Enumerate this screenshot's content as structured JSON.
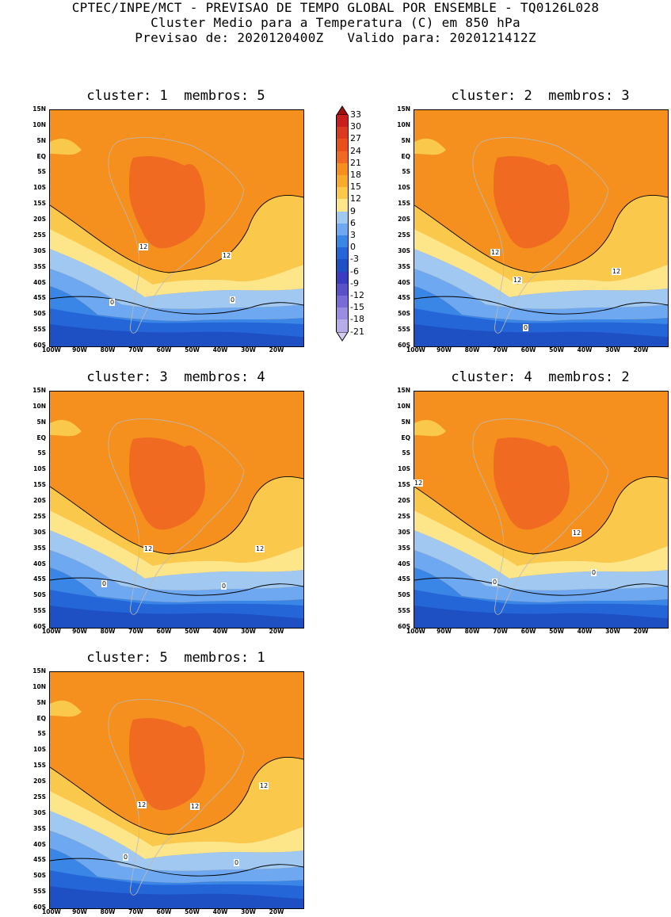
{
  "header": {
    "line1": "CPTEC/INPE/MCT - PREVISAO DE TEMPO GLOBAL POR ENSEMBLE - TQ0126L028",
    "line2": "Cluster Medio para a Temperatura (C) em 850 hPa",
    "line3": "Previsao de: 2020120400Z   Valido para: 2020121412Z"
  },
  "lat_labels": [
    "15N",
    "10N",
    "5N",
    "EQ",
    "5S",
    "10S",
    "15S",
    "20S",
    "25S",
    "30S",
    "35S",
    "40S",
    "45S",
    "50S",
    "55S",
    "60S"
  ],
  "lon_labels": [
    "100W",
    "90W",
    "80W",
    "70W",
    "60W",
    "50W",
    "40W",
    "30W",
    "20W"
  ],
  "legend": {
    "levels": [
      "33",
      "30",
      "27",
      "24",
      "21",
      "18",
      "15",
      "12",
      "9",
      "6",
      "3",
      "0",
      "-3",
      "-6",
      "-9",
      "-12",
      "-15",
      "-18",
      "-21"
    ],
    "colors": [
      "#a01010",
      "#c81e1e",
      "#dc3a20",
      "#e8501e",
      "#f06a22",
      "#f5901e",
      "#f8aa2a",
      "#fac84a",
      "#fde68a",
      "#a0c8f0",
      "#6ea8f0",
      "#3a86e6",
      "#2466d8",
      "#1e50c4",
      "#3c3cc0",
      "#5a50c8",
      "#7a6cd6",
      "#9a8ce0",
      "#b8ace8",
      "#d6ccf2"
    ]
  },
  "panels": [
    {
      "title": "cluster: 1  membros: 5",
      "labels": [
        "12",
        "12",
        "0",
        "0"
      ]
    },
    {
      "title": "cluster: 2  membros: 3",
      "labels": [
        "12",
        "12",
        "12",
        "0"
      ]
    },
    {
      "title": "cluster: 3  membros: 4",
      "labels": [
        "12",
        "12",
        "0",
        "0"
      ]
    },
    {
      "title": "cluster: 4  membros: 2",
      "labels": [
        "12",
        "12",
        "0",
        "0"
      ]
    },
    {
      "title": "cluster: 5  membros: 1",
      "labels": [
        "12",
        "12",
        "12",
        "0",
        "0"
      ]
    }
  ]
}
